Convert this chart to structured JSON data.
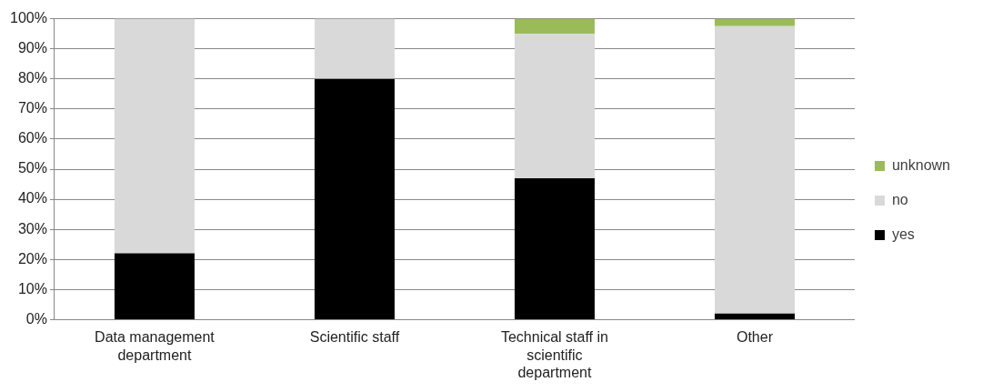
{
  "chart_data": {
    "type": "bar",
    "stacked": true,
    "categories": [
      "Data management department",
      "Scientific staff",
      "Technical staff in scientific department",
      "Other"
    ],
    "series": [
      {
        "name": "yes",
        "color": "#000000",
        "values": [
          22,
          80,
          47,
          2
        ]
      },
      {
        "name": "no",
        "color": "#d9d9d9",
        "values": [
          78,
          20,
          48,
          95.5
        ]
      },
      {
        "name": "unknown",
        "color": "#9bbb59",
        "values": [
          0,
          0,
          5,
          2.5
        ]
      }
    ],
    "ylim": [
      0,
      100
    ],
    "yticks": [
      {
        "value": 0,
        "label": "0%"
      },
      {
        "value": 10,
        "label": "10%"
      },
      {
        "value": 20,
        "label": "20%"
      },
      {
        "value": 30,
        "label": "30%"
      },
      {
        "value": 40,
        "label": "40%"
      },
      {
        "value": 50,
        "label": "50%"
      },
      {
        "value": 60,
        "label": "60%"
      },
      {
        "value": 70,
        "label": "70%"
      },
      {
        "value": 80,
        "label": "80%"
      },
      {
        "value": 90,
        "label": "90%"
      },
      {
        "value": 100,
        "label": "100%"
      }
    ],
    "grid": "y",
    "legend": "right"
  }
}
